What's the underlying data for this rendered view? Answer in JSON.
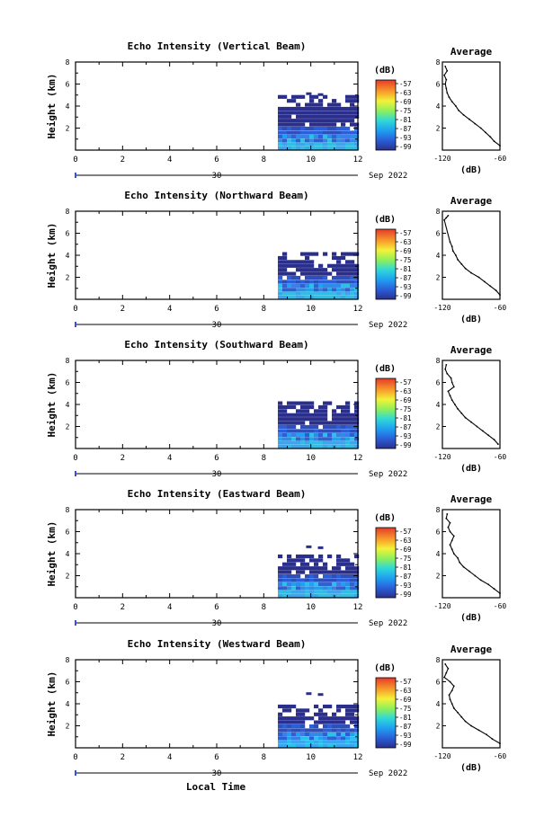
{
  "figure": {
    "xaxis_label": "Local Time",
    "date_day": "30",
    "date_month_year": "Sep 2022",
    "colorbar_unit": "(dB)",
    "colorbar_ticks": [
      "-57",
      "-63",
      "-69",
      "-75",
      "-81",
      "-87",
      "-93",
      "-99"
    ],
    "avg_xlabel": "(dB)",
    "avg_title": "Average"
  },
  "chart_data": [
    {
      "type": "heatmap",
      "title": "Echo Intensity (Vertical Beam)",
      "ylabel": "Height (km)",
      "xlabel": "Local Time",
      "x_range": [
        0,
        12
      ],
      "y_range": [
        0,
        8
      ],
      "x_ticks": [
        "0",
        "2",
        "4",
        "6",
        "8",
        "10",
        "12"
      ],
      "y_ticks": [
        "2",
        "4",
        "6",
        "8"
      ],
      "data_start_hour": 8.6,
      "echo_top_km": 4.7,
      "isolated_echo_km": 5.0,
      "colorbar_ticks": [
        "-57",
        "-63",
        "-69",
        "-75",
        "-81",
        "-87",
        "-93",
        "-99"
      ],
      "average_profile": {
        "title": "Average",
        "xlabel": "(dB)",
        "x_range": [
          -120,
          -60
        ],
        "x_ticks": [
          "-120",
          "-60"
        ],
        "y_ticks": [
          "2",
          "4",
          "6",
          "8"
        ],
        "y_range": [
          0,
          8
        ],
        "height_km": [
          0.4,
          0.8,
          1.2,
          1.6,
          2.0,
          2.4,
          2.8,
          3.2,
          3.6,
          4.0,
          4.4,
          4.8,
          5.2,
          5.6,
          6.0,
          6.4,
          6.8,
          7.2,
          7.6
        ],
        "db": [
          -60,
          -66,
          -70,
          -75,
          -80,
          -86,
          -92,
          -98,
          -103,
          -106,
          -110,
          -113,
          -115,
          -116,
          -117,
          -116,
          -118,
          -115,
          -117
        ]
      }
    },
    {
      "type": "heatmap",
      "title": "Echo Intensity (Northward Beam)",
      "ylabel": "Height (km)",
      "xlabel": "Local Time",
      "x_range": [
        0,
        12
      ],
      "y_range": [
        0,
        8
      ],
      "x_ticks": [
        "0",
        "2",
        "4",
        "6",
        "8",
        "10",
        "12"
      ],
      "y_ticks": [
        "2",
        "4",
        "6",
        "8"
      ],
      "data_start_hour": 8.6,
      "echo_top_km": 4.0,
      "colorbar_ticks": [
        "-57",
        "-63",
        "-69",
        "-75",
        "-81",
        "-87",
        "-93",
        "-99"
      ],
      "average_profile": {
        "title": "Average",
        "xlabel": "(dB)",
        "x_range": [
          -120,
          -60
        ],
        "x_ticks": [
          "-120",
          "-60"
        ],
        "y_ticks": [
          "2",
          "4",
          "6",
          "8"
        ],
        "y_range": [
          0,
          8
        ],
        "height_km": [
          0.4,
          0.8,
          1.2,
          1.6,
          2.0,
          2.4,
          2.8,
          3.2,
          3.6,
          4.0,
          4.4,
          4.8,
          5.2,
          7.2,
          7.4,
          7.6
        ],
        "db": [
          -60,
          -64,
          -70,
          -76,
          -82,
          -90,
          -96,
          -100,
          -104,
          -106,
          -109,
          -110,
          -112,
          -118,
          -116,
          -114
        ]
      }
    },
    {
      "type": "heatmap",
      "title": "Echo Intensity (Southward Beam)",
      "ylabel": "Height (km)",
      "xlabel": "Local Time",
      "x_range": [
        0,
        12
      ],
      "y_range": [
        0,
        8
      ],
      "x_ticks": [
        "0",
        "2",
        "4",
        "6",
        "8",
        "10",
        "12"
      ],
      "y_ticks": [
        "2",
        "4",
        "6",
        "8"
      ],
      "data_start_hour": 8.6,
      "echo_top_km": 4.0,
      "colorbar_ticks": [
        "-57",
        "-63",
        "-69",
        "-75",
        "-81",
        "-87",
        "-93",
        "-99"
      ],
      "average_profile": {
        "title": "Average",
        "xlabel": "(dB)",
        "x_range": [
          -120,
          -60
        ],
        "x_ticks": [
          "-120",
          "-60"
        ],
        "y_ticks": [
          "2",
          "4",
          "6",
          "8"
        ],
        "y_range": [
          0,
          8
        ],
        "height_km": [
          0.4,
          0.8,
          1.2,
          1.6,
          2.0,
          2.4,
          2.8,
          3.2,
          3.6,
          4.0,
          4.4,
          4.8,
          5.2,
          5.6,
          6.0,
          6.4,
          6.8,
          7.2,
          7.6
        ],
        "db": [
          -62,
          -66,
          -72,
          -78,
          -84,
          -90,
          -96,
          -100,
          -104,
          -107,
          -110,
          -112,
          -114,
          -108,
          -110,
          -111,
          -115,
          -117,
          -116
        ]
      }
    },
    {
      "type": "heatmap",
      "title": "Echo Intensity (Eastward Beam)",
      "ylabel": "Height (km)",
      "xlabel": "Local Time",
      "x_range": [
        0,
        12
      ],
      "y_range": [
        0,
        8
      ],
      "x_ticks": [
        "0",
        "2",
        "4",
        "6",
        "8",
        "10",
        "12"
      ],
      "y_ticks": [
        "2",
        "4",
        "6",
        "8"
      ],
      "data_start_hour": 8.6,
      "echo_top_km": 3.6,
      "isolated_echo_km": 4.5,
      "colorbar_ticks": [
        "-57",
        "-63",
        "-69",
        "-75",
        "-81",
        "-87",
        "-93",
        "-99"
      ],
      "average_profile": {
        "title": "Average",
        "xlabel": "(dB)",
        "x_range": [
          -120,
          -60
        ],
        "x_ticks": [
          "-120",
          "-60"
        ],
        "y_ticks": [
          "2",
          "4",
          "6",
          "8"
        ],
        "y_range": [
          0,
          8
        ],
        "height_km": [
          0.4,
          0.8,
          1.2,
          1.6,
          2.0,
          2.4,
          2.8,
          3.2,
          3.6,
          4.0,
          4.4,
          4.8,
          5.2,
          5.6,
          6.0,
          6.4,
          6.8,
          7.2,
          7.6
        ],
        "db": [
          -60,
          -66,
          -72,
          -80,
          -86,
          -92,
          -98,
          -102,
          -104,
          -108,
          -110,
          -112,
          -110,
          -108,
          -112,
          -114,
          -112,
          -116,
          -115
        ]
      }
    },
    {
      "type": "heatmap",
      "title": "Echo Intensity (Westward Beam)",
      "ylabel": "Height (km)",
      "xlabel": "Local Time",
      "x_range": [
        0,
        12
      ],
      "y_range": [
        0,
        8
      ],
      "x_ticks": [
        "0",
        "2",
        "4",
        "6",
        "8",
        "10",
        "12"
      ],
      "y_ticks": [
        "2",
        "4",
        "6",
        "8"
      ],
      "data_start_hour": 8.6,
      "echo_top_km": 3.6,
      "isolated_echo_km": 4.8,
      "colorbar_ticks": [
        "-57",
        "-63",
        "-69",
        "-75",
        "-81",
        "-87",
        "-93",
        "-99"
      ],
      "average_profile": {
        "title": "Average",
        "xlabel": "(dB)",
        "x_range": [
          -120,
          -60
        ],
        "x_ticks": [
          "-120",
          "-60"
        ],
        "y_ticks": [
          "2",
          "4",
          "6",
          "8"
        ],
        "y_range": [
          0,
          8
        ],
        "height_km": [
          0.4,
          0.8,
          1.2,
          1.6,
          2.0,
          2.4,
          2.8,
          3.2,
          3.6,
          4.0,
          4.4,
          4.8,
          5.2,
          5.6,
          6.0,
          6.4,
          6.8,
          7.2,
          7.6
        ],
        "db": [
          -60,
          -68,
          -74,
          -82,
          -90,
          -96,
          -100,
          -104,
          -108,
          -110,
          -112,
          -113,
          -110,
          -108,
          -112,
          -118,
          -116,
          -114,
          -117
        ]
      }
    }
  ]
}
